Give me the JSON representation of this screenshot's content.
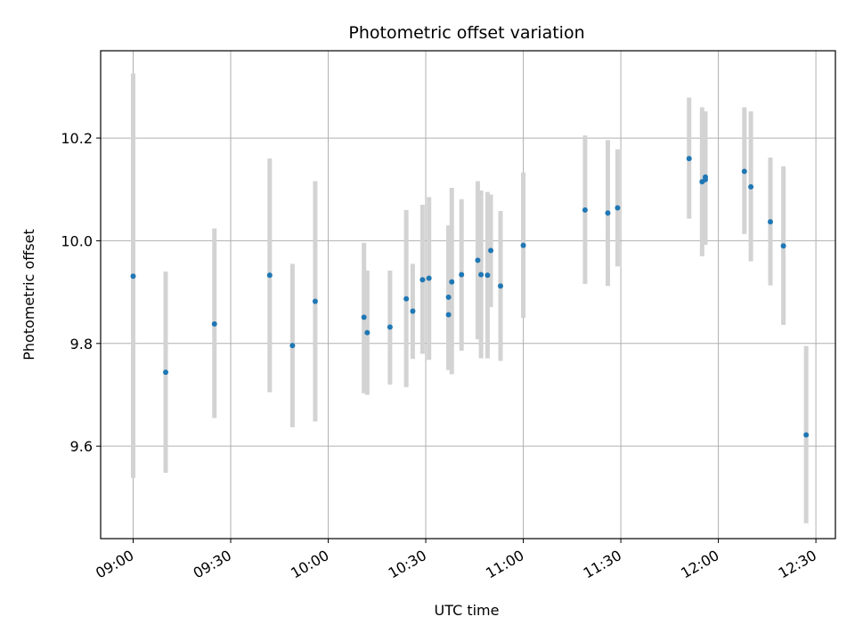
{
  "chart_data": {
    "type": "scatter",
    "title": "Photometric offset variation",
    "xlabel": "UTC time",
    "ylabel": "Photometric offset",
    "x_ticks": [
      "09:00",
      "09:30",
      "10:00",
      "10:30",
      "11:00",
      "11:30",
      "12:00",
      "12:30"
    ],
    "y_ticks": [
      "9.6",
      "9.8",
      "10.0",
      "10.2"
    ],
    "xlim": [
      "08:50",
      "12:36"
    ],
    "ylim": [
      9.42,
      10.37
    ],
    "grid": true,
    "colors": {
      "points": "#1f77b4",
      "errorbars": "#d3d3d3",
      "grid": "#b0b0b0"
    },
    "points": [
      {
        "x": "09:00",
        "y": 9.931,
        "err_lo": 9.538,
        "err_hi": 10.326
      },
      {
        "x": "09:10",
        "y": 9.744,
        "err_lo": 9.548,
        "err_hi": 9.94
      },
      {
        "x": "09:25",
        "y": 9.838,
        "err_lo": 9.655,
        "err_hi": 10.024
      },
      {
        "x": "09:42",
        "y": 9.933,
        "err_lo": 9.705,
        "err_hi": 10.16
      },
      {
        "x": "09:49",
        "y": 9.796,
        "err_lo": 9.637,
        "err_hi": 9.955
      },
      {
        "x": "09:56",
        "y": 9.882,
        "err_lo": 9.648,
        "err_hi": 10.116
      },
      {
        "x": "10:11",
        "y": 9.851,
        "err_lo": 9.703,
        "err_hi": 9.996
      },
      {
        "x": "10:12",
        "y": 9.821,
        "err_lo": 9.7,
        "err_hi": 9.942
      },
      {
        "x": "10:19",
        "y": 9.832,
        "err_lo": 9.72,
        "err_hi": 9.942
      },
      {
        "x": "10:24",
        "y": 9.887,
        "err_lo": 9.715,
        "err_hi": 10.06
      },
      {
        "x": "10:26",
        "y": 9.863,
        "err_lo": 9.77,
        "err_hi": 9.955
      },
      {
        "x": "10:29",
        "y": 9.924,
        "err_lo": 9.78,
        "err_hi": 10.07
      },
      {
        "x": "10:31",
        "y": 9.927,
        "err_lo": 9.768,
        "err_hi": 10.085
      },
      {
        "x": "10:37",
        "y": 9.856,
        "err_lo": 9.748,
        "err_hi": 10.028
      },
      {
        "x": "10:37",
        "y": 9.89,
        "err_lo": 9.75,
        "err_hi": 10.03
      },
      {
        "x": "10:38",
        "y": 9.92,
        "err_lo": 9.74,
        "err_hi": 10.103
      },
      {
        "x": "10:41",
        "y": 9.934,
        "err_lo": 9.786,
        "err_hi": 10.081
      },
      {
        "x": "10:46",
        "y": 9.962,
        "err_lo": 9.808,
        "err_hi": 10.116
      },
      {
        "x": "10:47",
        "y": 9.934,
        "err_lo": 9.771,
        "err_hi": 10.098
      },
      {
        "x": "10:49",
        "y": 9.933,
        "err_lo": 9.771,
        "err_hi": 10.095
      },
      {
        "x": "10:50",
        "y": 9.981,
        "err_lo": 9.871,
        "err_hi": 10.09
      },
      {
        "x": "10:53",
        "y": 9.912,
        "err_lo": 9.766,
        "err_hi": 10.058
      },
      {
        "x": "11:00",
        "y": 9.991,
        "err_lo": 9.85,
        "err_hi": 10.133
      },
      {
        "x": "11:19",
        "y": 10.06,
        "err_lo": 9.916,
        "err_hi": 10.205
      },
      {
        "x": "11:26",
        "y": 10.054,
        "err_lo": 9.912,
        "err_hi": 10.196
      },
      {
        "x": "11:29",
        "y": 10.064,
        "err_lo": 9.95,
        "err_hi": 10.178
      },
      {
        "x": "11:51",
        "y": 10.16,
        "err_lo": 10.043,
        "err_hi": 10.279
      },
      {
        "x": "11:55",
        "y": 10.115,
        "err_lo": 9.97,
        "err_hi": 10.26
      },
      {
        "x": "11:56",
        "y": 10.124,
        "err_lo": 9.992,
        "err_hi": 10.252
      },
      {
        "x": "11:56",
        "y": 10.119,
        "err_lo": 9.994,
        "err_hi": 10.246
      },
      {
        "x": "12:08",
        "y": 10.135,
        "err_lo": 10.013,
        "err_hi": 10.26
      },
      {
        "x": "12:10",
        "y": 10.105,
        "err_lo": 9.96,
        "err_hi": 10.252
      },
      {
        "x": "12:16",
        "y": 10.037,
        "err_lo": 9.913,
        "err_hi": 10.162
      },
      {
        "x": "12:20",
        "y": 9.99,
        "err_lo": 9.836,
        "err_hi": 10.145
      },
      {
        "x": "12:27",
        "y": 9.622,
        "err_lo": 9.45,
        "err_hi": 9.795
      }
    ]
  }
}
